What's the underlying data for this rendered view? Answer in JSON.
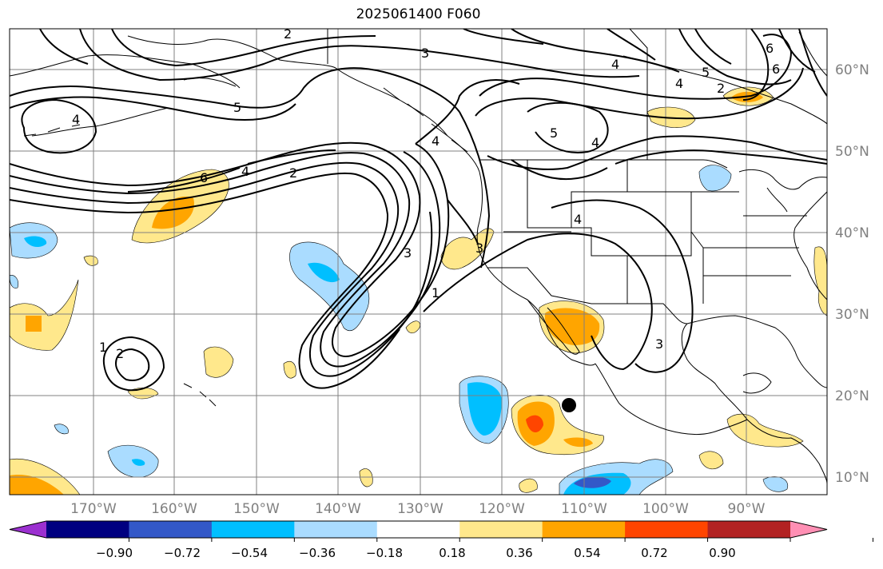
{
  "title": "2025061400 F060",
  "lat_labels": [
    "60°N",
    "50°N",
    "40°N",
    "30°N",
    "20°N",
    "10°N"
  ],
  "lon_labels": [
    "170°W",
    "160°W",
    "150°W",
    "140°W",
    "130°W",
    "120°W",
    "110°W",
    "100°W",
    "90°W"
  ],
  "colorbar": {
    "ticks": [
      "−0.90",
      "−0.72",
      "−0.54",
      "−0.36",
      "−0.18",
      "0.18",
      "0.36",
      "0.54",
      "0.72",
      "0.90"
    ],
    "colors": [
      "#9b30d0",
      "#000080",
      "#3358c8",
      "#00bfff",
      "#aadcff",
      "#ffffff",
      "#ffe88c",
      "#ffa500",
      "#ff4500",
      "#b22222",
      "#ff8fb4"
    ]
  },
  "contour_labels": [
    "2",
    "3",
    "4",
    "4",
    "4",
    "5",
    "5",
    "5",
    "6",
    "6",
    "4",
    "2",
    "6",
    "4",
    "2",
    "3",
    "1",
    "2",
    "1",
    "4",
    "4",
    "3",
    "3"
  ],
  "marker": {
    "lat": 19,
    "lon": "110°W"
  },
  "colors": {
    "grid": "#808080",
    "contour": "#000000",
    "ocean": "#ffffff"
  }
}
